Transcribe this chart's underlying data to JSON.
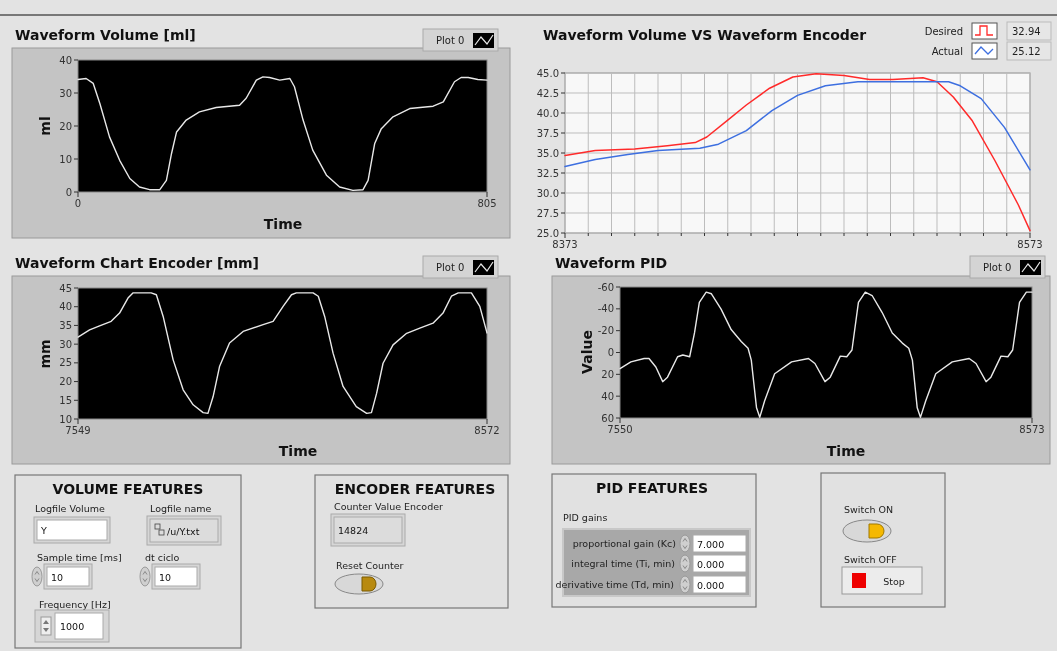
{
  "chart_data": [
    {
      "type": "line",
      "title": "Waveform Volume [ml]",
      "xlabel": "Time",
      "ylabel": "ml",
      "xlim": [
        0,
        805
      ],
      "ylim": [
        0,
        40
      ],
      "xticks": [
        0,
        805
      ],
      "yticks": [
        0,
        10,
        20,
        30,
        40
      ],
      "grid": false,
      "legend": "top right",
      "series": [
        {
          "name": "Plot 0",
          "color": "#e8e8e8",
          "x": [
            0,
            16,
            30,
            43,
            62,
            82,
            102,
            121,
            141,
            161,
            174,
            184,
            194,
            213,
            239,
            272,
            318,
            331,
            351,
            364,
            377,
            397,
            417,
            426,
            443,
            462,
            489,
            515,
            541,
            561,
            571,
            584,
            597,
            620,
            653,
            699,
            719,
            741,
            754,
            768,
            787,
            805
          ],
          "values": [
            34.1,
            34.4,
            32.9,
            26.8,
            16.7,
            9.6,
            4.1,
            1.5,
            0.7,
            0.7,
            3.5,
            11.6,
            18.2,
            21.8,
            24.3,
            25.6,
            26.3,
            28.4,
            33.9,
            34.9,
            34.7,
            33.9,
            34.4,
            31.9,
            21.8,
            12.7,
            5.1,
            1.5,
            0.5,
            0.7,
            3.5,
            14.7,
            19.2,
            22.8,
            25.3,
            26,
            27.3,
            33.4,
            34.7,
            34.7,
            34.1,
            33.9
          ]
        }
      ]
    },
    {
      "type": "line",
      "title": "Waveform Volume VS Waveform Encoder",
      "xlim": [
        8373,
        8573
      ],
      "ylim": [
        25,
        45
      ],
      "xticks": [
        8373,
        {
          "value": 8383,
          "label": null
        },
        {
          "value": 8393,
          "label": null
        },
        {
          "value": 8403,
          "label": null
        },
        {
          "value": 8413,
          "label": null
        },
        {
          "value": 8423,
          "label": null
        },
        {
          "value": 8433,
          "label": null
        },
        {
          "value": 8443,
          "label": null
        },
        {
          "value": 8453,
          "label": null
        },
        {
          "value": 8463,
          "label": null
        },
        {
          "value": 8473,
          "label": null
        },
        {
          "value": 8483,
          "label": null
        },
        {
          "value": 8493,
          "label": null
        },
        {
          "value": 8503,
          "label": null
        },
        {
          "value": 8513,
          "label": null
        },
        {
          "value": 8523,
          "label": null
        },
        {
          "value": 8533,
          "label": null
        },
        {
          "value": 8543,
          "label": null
        },
        {
          "value": 8553,
          "label": null
        },
        {
          "value": 8563,
          "label": null
        },
        8573
      ],
      "yticks": [
        {
          "value": 25,
          "label": "25.0"
        },
        {
          "value": 27.5,
          "label": "27.5"
        },
        {
          "value": 30,
          "label": "30.0"
        },
        {
          "value": 32.5,
          "label": "32.5"
        },
        {
          "value": 35,
          "label": "35.0"
        },
        {
          "value": 37.5,
          "label": "37.5"
        },
        {
          "value": 40,
          "label": "40.0"
        },
        {
          "value": 42.5,
          "label": "42.5"
        },
        {
          "value": 45,
          "label": "45.0"
        }
      ],
      "grid": true,
      "legend": "top right",
      "annotations": [
        "32.94",
        "25.12"
      ],
      "series": [
        {
          "name": "Desired",
          "color": "#ff2a2a",
          "x": [
            8373,
            8386,
            8403,
            8417,
            8429,
            8434,
            8443,
            8451,
            8461,
            8471,
            8481,
            8493,
            8504,
            8514,
            8527,
            8533,
            8540,
            8548,
            8558,
            8568,
            8573
          ],
          "values": [
            34.7,
            35.3,
            35.5,
            35.9,
            36.3,
            37,
            39.1,
            41,
            43.1,
            44.5,
            44.9,
            44.7,
            44.2,
            44.2,
            44.4,
            43.9,
            42,
            39.1,
            34,
            28.5,
            25.3
          ]
        },
        {
          "name": "Actual",
          "color": "#3d6fe0",
          "x": [
            8373,
            8386,
            8400,
            8413,
            8431,
            8439,
            8451,
            8462,
            8473,
            8485,
            8499,
            8513,
            8538,
            8543,
            8552,
            8562,
            8573
          ],
          "values": [
            33.3,
            34.2,
            34.8,
            35.3,
            35.6,
            36.1,
            37.8,
            40.3,
            42.2,
            43.4,
            43.9,
            43.9,
            43.9,
            43.4,
            41.8,
            38.2,
            32.9
          ]
        }
      ]
    },
    {
      "type": "line",
      "title": "Waveform Chart Encoder [mm]",
      "xlabel": "Time",
      "ylabel": "mm",
      "xlim": [
        7549,
        8572
      ],
      "ylim": [
        10,
        45
      ],
      "xticks": [
        7549,
        8572
      ],
      "yticks": [
        10,
        15,
        20,
        25,
        30,
        35,
        40,
        45
      ],
      "grid": false,
      "legend": "top right",
      "series": [
        {
          "name": "Plot 0",
          "color": "#e8e8e8",
          "x": [
            7549,
            7578,
            7603,
            7632,
            7653,
            7674,
            7687,
            7732,
            7745,
            7762,
            7787,
            7812,
            7837,
            7862,
            7874,
            7887,
            7903,
            7928,
            7962,
            8012,
            8037,
            8062,
            8083,
            8095,
            8137,
            8150,
            8166,
            8187,
            8212,
            8245,
            8271,
            8283,
            8296,
            8312,
            8337,
            8371,
            8404,
            8437,
            8462,
            8483,
            8500,
            8533,
            8554,
            8572
          ],
          "values": [
            31.9,
            33.8,
            34.9,
            36.1,
            38.3,
            42.3,
            43.7,
            43.7,
            43.2,
            37.4,
            25.8,
            17.8,
            13.8,
            11.7,
            11.5,
            16,
            24,
            30.3,
            33.4,
            35.2,
            36.1,
            40.1,
            43.2,
            43.7,
            43.7,
            42.8,
            37.4,
            27.6,
            18.7,
            13.3,
            11.5,
            11.7,
            16.9,
            24.9,
            29.8,
            32.9,
            34.3,
            35.6,
            38.3,
            42.8,
            43.7,
            43.7,
            40.1,
            33
          ]
        }
      ]
    },
    {
      "type": "line",
      "title": "Waveform PID",
      "xlabel": "Time",
      "ylabel": "Value",
      "xlim": [
        7550,
        8573
      ],
      "ylim": [
        60,
        -60
      ],
      "xticks": [
        7550,
        8573
      ],
      "yticks": [
        -60,
        -40,
        -20,
        0,
        20,
        40,
        60
      ],
      "grid": false,
      "legend": "top right",
      "series": [
        {
          "name": "Plot 0",
          "color": "#e8e8e8",
          "x": [
            7550,
            7577,
            7610,
            7622,
            7639,
            7656,
            7668,
            7693,
            7706,
            7723,
            7735,
            7747,
            7764,
            7777,
            7801,
            7826,
            7851,
            7868,
            7876,
            7889,
            7897,
            7909,
            7934,
            7976,
            8018,
            8034,
            8059,
            8072,
            8097,
            8113,
            8126,
            8142,
            8159,
            8176,
            8201,
            8226,
            8251,
            8267,
            8276,
            8288,
            8296,
            8309,
            8334,
            8375,
            8417,
            8434,
            8459,
            8471,
            8496,
            8513,
            8525,
            8542,
            8559,
            8573
          ],
          "values": [
            14.8,
            8.6,
            5.5,
            5.5,
            13.3,
            26.7,
            22.6,
            3.9,
            2.3,
            3.9,
            -17.9,
            -46,
            -55.3,
            -53.8,
            -39.7,
            -21,
            -10.1,
            -3.9,
            7,
            50.7,
            59.4,
            44.4,
            19.5,
            8.6,
            5.5,
            10.1,
            26.7,
            22.6,
            3.3,
            3.9,
            -2.3,
            -46,
            -55.3,
            -52.2,
            -36.6,
            -17.9,
            -8.6,
            -3.9,
            7,
            50.7,
            59.4,
            44.4,
            19.5,
            8.6,
            5.5,
            10.1,
            26.7,
            22.6,
            3.3,
            3.9,
            -2.3,
            -46,
            -55.3,
            -55.3
          ]
        }
      ]
    },
    {
      "type": "other",
      "title": "VOLUME FEATURES",
      "annotations": [
        "Logfile Volume",
        "Y",
        "Logfile name",
        "/u/Y.txt",
        "Sample time [ms]",
        "10",
        "dt ciclo",
        "10",
        "Frequency [Hz]",
        "1000"
      ]
    },
    {
      "type": "other",
      "title": "ENCODER FEATURES",
      "annotations": [
        "Counter Value Encoder",
        "14824",
        "Reset Counter"
      ]
    },
    {
      "type": "other",
      "title": "PID FEATURES",
      "annotations": [
        "PID gains",
        "proportional gain (Kc)",
        "7.000",
        "integral time (Ti, min)",
        "0.000",
        "derivative time (Td, min)",
        "0.000"
      ]
    },
    {
      "type": "other",
      "annotations": [
        "Switch ON",
        "Switch OFF",
        "Stop"
      ]
    }
  ]
}
